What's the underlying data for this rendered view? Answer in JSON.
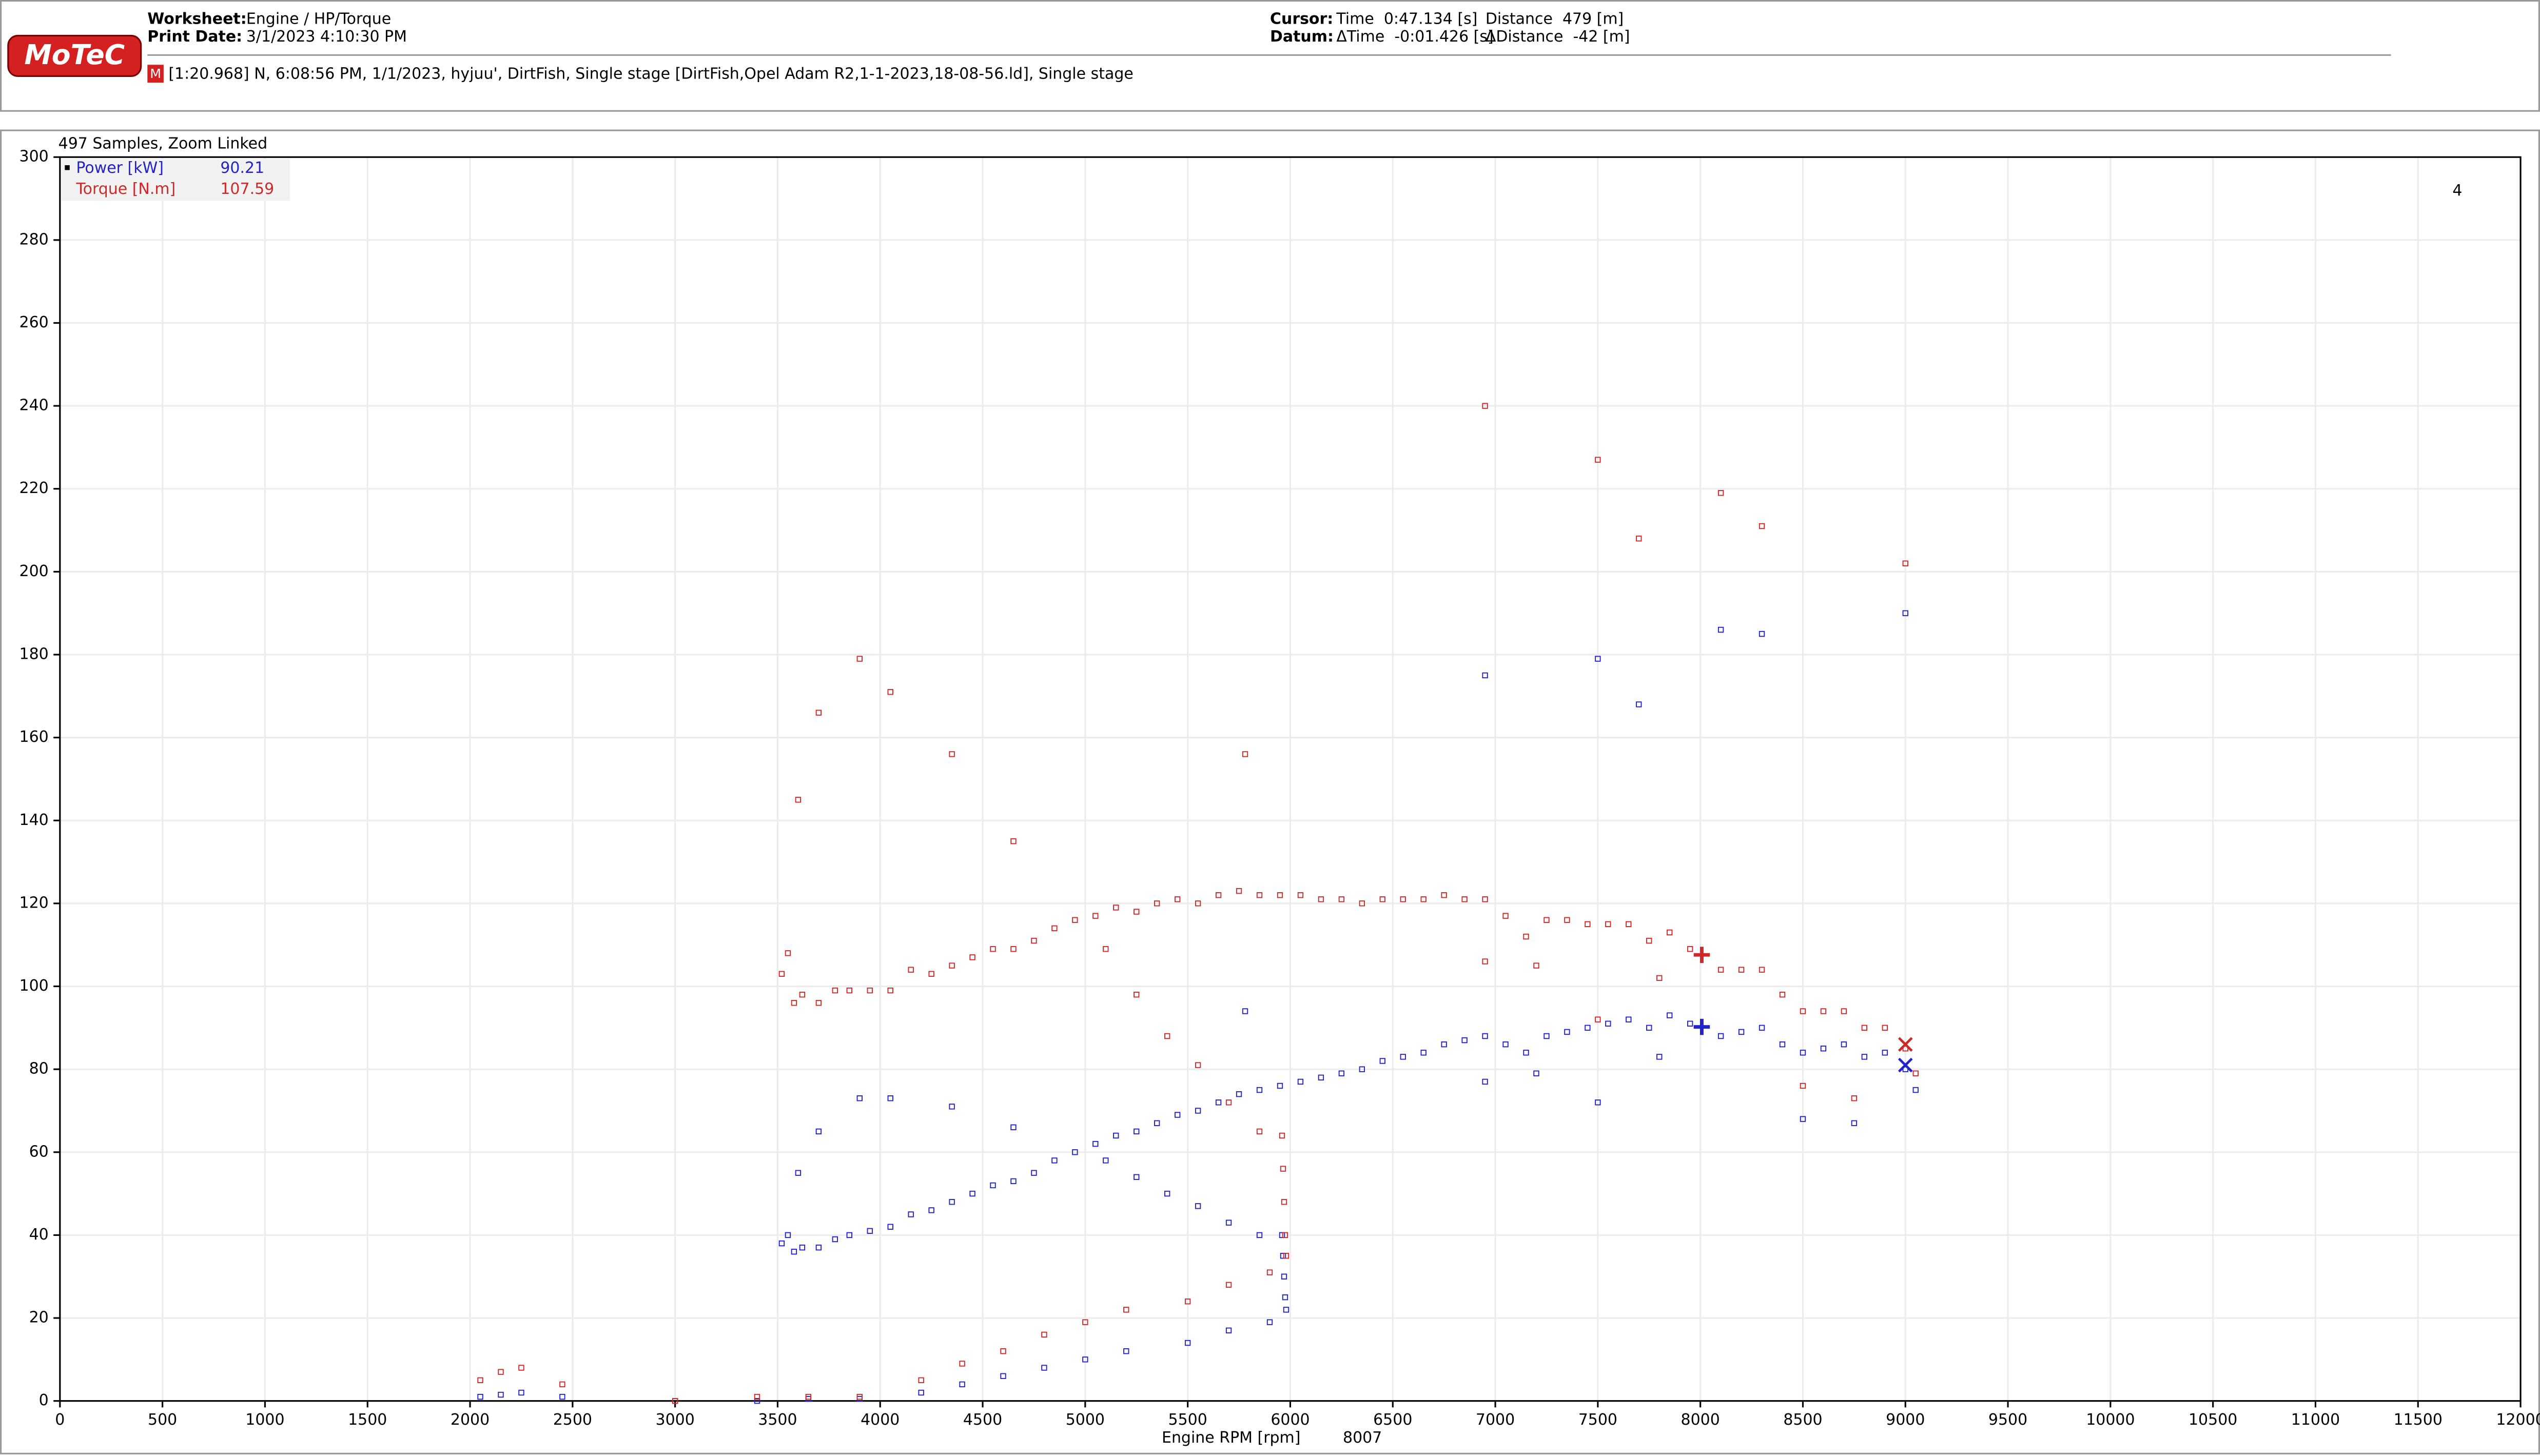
{
  "header": {
    "logo": "MoTeC",
    "worksheet_label": "Worksheet:",
    "worksheet": "Engine / HP/Torque",
    "print_date_label": "Print Date:",
    "print_date": "3/1/2023 4:10:30 PM",
    "cursor_label": "Cursor:",
    "cursor_time": "Time  0:47.134 [s]",
    "cursor_distance": "Distance  479 [m]",
    "datum_label": "Datum:",
    "datum_time": "ΔTime  -0:01.426 [s]",
    "datum_distance": "ΔDistance  -42 [m]",
    "file_badge": "M",
    "file_info": "[1:20.968] N, 6:08:56 PM, 1/1/2023, hyjuu', DirtFish, Single stage [DirtFish,Opel Adam R2,1-1-2023,18-08-56.ld], Single stage"
  },
  "chart_data": {
    "type": "scatter",
    "title": "497 Samples, Zoom Linked",
    "corner_label": "4",
    "x_label": "Engine RPM [rpm]",
    "xlim": [
      0,
      12000
    ],
    "ylim": [
      0,
      300
    ],
    "xticks": [
      0,
      500,
      1000,
      1500,
      2000,
      2500,
      3000,
      3500,
      4000,
      4500,
      5000,
      5500,
      6000,
      6500,
      7000,
      7500,
      8000,
      8500,
      9000,
      9500,
      10000,
      10500,
      11000,
      11500,
      12000
    ],
    "yticks": [
      0,
      20,
      40,
      60,
      80,
      100,
      120,
      140,
      160,
      180,
      200,
      220,
      240,
      260,
      280,
      300
    ],
    "grid": true,
    "cursor_x": 8007,
    "datum_x": 9000,
    "x": [
      3520,
      3550,
      3580,
      3620,
      3700,
      3780,
      3850,
      3950,
      4050,
      4150,
      4250,
      4350,
      4450,
      4550,
      4650,
      4750,
      4850,
      4950,
      5050,
      5150,
      5250,
      5350,
      5450,
      5550,
      5650,
      5750,
      5850,
      5950,
      6050,
      6150,
      6250,
      6350,
      6450,
      6550,
      6650,
      6750,
      6850,
      6950,
      7050,
      7150,
      7250,
      7350,
      7450,
      7550,
      7650,
      7750,
      7850,
      7950,
      8100,
      8200,
      8300,
      8400,
      8500,
      8600,
      8700,
      8800,
      8900,
      9000,
      6950,
      7200,
      7500,
      7800,
      8500,
      8750,
      9050,
      5100,
      5250,
      5400,
      5550,
      5700,
      5850,
      5960,
      5965,
      5970,
      5975,
      5980,
      5900,
      5700,
      5500,
      5200,
      5000,
      4800,
      4600,
      4400,
      4200,
      2050,
      2150,
      2250,
      2450,
      3000,
      3400,
      3650,
      3900,
      3600,
      3700,
      3900,
      4050,
      4350,
      4650,
      5780,
      6950,
      7500,
      7700,
      8100,
      8300,
      9000
    ],
    "series": [
      {
        "name": "Power [kW]",
        "color": "#2222cc",
        "cursor_value": 90.21,
        "datum_value": 81,
        "values": [
          38,
          40,
          36,
          37,
          37,
          39,
          40,
          41,
          42,
          45,
          46,
          48,
          50,
          52,
          53,
          55,
          58,
          60,
          62,
          64,
          65,
          67,
          69,
          70,
          72,
          74,
          75,
          76,
          77,
          78,
          79,
          80,
          82,
          83,
          84,
          86,
          87,
          88,
          86,
          84,
          88,
          89,
          90,
          91,
          92,
          90,
          93,
          91,
          88,
          89,
          90,
          86,
          84,
          85,
          86,
          83,
          84,
          80,
          77,
          79,
          72,
          83,
          68,
          67,
          75,
          58,
          54,
          50,
          47,
          43,
          40,
          40,
          35,
          30,
          25,
          22,
          19,
          17,
          14,
          12,
          10,
          8,
          6,
          4,
          2,
          1,
          1.5,
          2,
          1,
          0,
          0,
          0.5,
          0.5,
          55,
          65,
          73,
          73,
          71,
          66,
          94,
          175,
          179,
          168,
          186,
          185,
          190
        ]
      },
      {
        "name": "Torque [N.m]",
        "color": "#d02828",
        "cursor_value": 107.59,
        "datum_value": 86,
        "values": [
          103,
          108,
          96,
          98,
          96,
          99,
          99,
          99,
          99,
          104,
          103,
          105,
          107,
          109,
          109,
          111,
          114,
          116,
          117,
          119,
          118,
          120,
          121,
          120,
          122,
          123,
          122,
          122,
          122,
          121,
          121,
          120,
          121,
          121,
          121,
          122,
          121,
          121,
          117,
          112,
          116,
          116,
          115,
          115,
          115,
          111,
          113,
          109,
          104,
          104,
          104,
          98,
          94,
          94,
          94,
          90,
          90,
          85,
          106,
          105,
          92,
          102,
          76,
          73,
          79,
          109,
          98,
          88,
          81,
          72,
          65,
          64,
          56,
          48,
          40,
          35,
          31,
          28,
          24,
          22,
          19,
          16,
          12,
          9,
          5,
          5,
          7,
          8,
          4,
          0,
          1,
          1,
          1,
          145,
          166,
          179,
          171,
          156,
          135,
          156,
          240,
          227,
          208,
          219,
          211,
          202
        ]
      }
    ]
  }
}
